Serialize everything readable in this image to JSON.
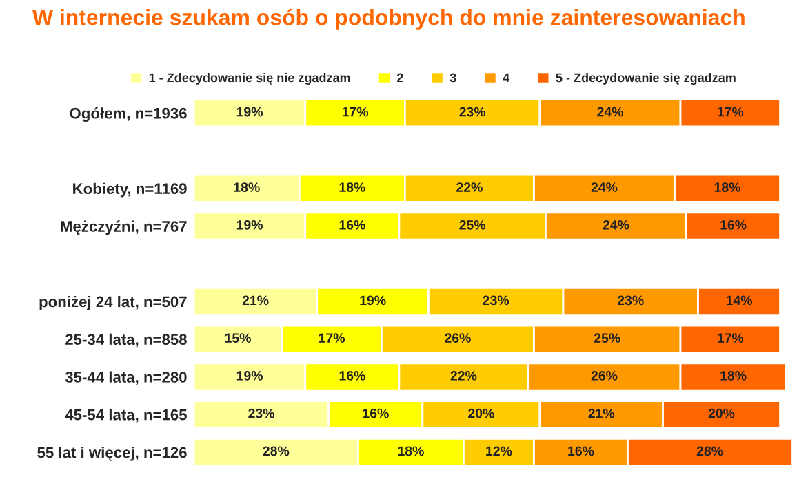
{
  "chart_data": {
    "type": "bar",
    "orientation": "horizontal",
    "stacked": true,
    "title": "W internecie szukam osób o podobnych do mnie zainteresowaniach",
    "categories": [
      "Ogółem, n=1936",
      null,
      "Kobiety, n=1169",
      "Mężczyźni, n=767",
      null,
      "poniżej 24 lat, n=507",
      "25-34 lata, n=858",
      "35-44 lata, n=280",
      "45-54 lata, n=165",
      "55 lat i więcej, n=126"
    ],
    "series": [
      {
        "name": "1 - Zdecydowanie się nie zgadzam",
        "color": "#ffff99",
        "values": [
          19,
          null,
          18,
          19,
          null,
          21,
          15,
          19,
          23,
          28
        ],
        "value_labels": [
          "19%",
          null,
          "18%",
          "19%",
          null,
          "21%",
          "15%",
          "19%",
          "23%",
          "28%"
        ]
      },
      {
        "name": "2",
        "color": "#ffff00",
        "values": [
          17,
          null,
          18,
          16,
          null,
          19,
          17,
          16,
          16,
          18
        ],
        "value_labels": [
          "17%",
          null,
          "18%",
          "16%",
          null,
          "19%",
          "17%",
          "16%",
          "16%",
          "18%"
        ]
      },
      {
        "name": "3",
        "color": "#ffcc00",
        "values": [
          23,
          null,
          22,
          25,
          null,
          23,
          26,
          22,
          20,
          12
        ],
        "value_labels": [
          "23%",
          null,
          "22%",
          "25%",
          null,
          "23%",
          "26%",
          "22%",
          "20%",
          "12%"
        ]
      },
      {
        "name": "4",
        "color": "#ff9900",
        "values": [
          24,
          null,
          24,
          24,
          null,
          23,
          25,
          26,
          21,
          16
        ],
        "value_labels": [
          "24%",
          null,
          "24%",
          "24%",
          null,
          "23%",
          "25%",
          "26%",
          "21%",
          "16%"
        ]
      },
      {
        "name": "5 - Zdecydowanie się zgadzam",
        "color": "#ff6600",
        "values": [
          17,
          null,
          18,
          16,
          null,
          14,
          17,
          18,
          20,
          28
        ],
        "value_labels": [
          "17%",
          null,
          "18%",
          "16%",
          null,
          "14%",
          "17%",
          "18%",
          "20%",
          "28%"
        ]
      }
    ],
    "legend": "top",
    "grid": false,
    "tick_labels": "y"
  }
}
